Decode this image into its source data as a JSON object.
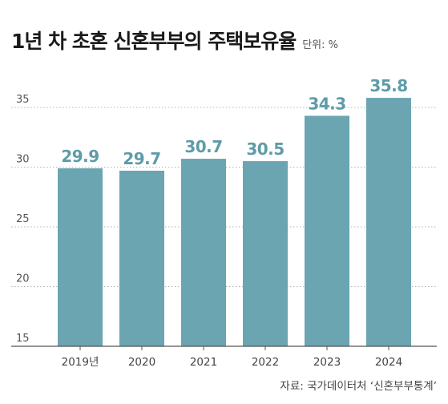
{
  "chart_data": {
    "type": "bar",
    "title": "1년 차 초혼 신혼부부의 주택보유율",
    "unit_label": "단위: %",
    "source": "자료: 국가데이터처 ‘신혼부부통계’",
    "categories": [
      "2019년",
      "2020",
      "2021",
      "2022",
      "2023",
      "2024"
    ],
    "values": [
      29.9,
      29.7,
      30.7,
      30.5,
      34.3,
      35.8
    ],
    "value_labels": [
      "29.9",
      "29.7",
      "30.7",
      "30.5",
      "34.3",
      "35.8"
    ],
    "yticks": [
      15,
      20,
      25,
      30,
      35
    ],
    "ytick_labels": [
      "15",
      "20",
      "25",
      "30",
      "35"
    ],
    "ylim": [
      15,
      37.2
    ],
    "grid": "horizontal dotted",
    "colors": {
      "bar": "#6aa5b1",
      "value_label": "#5e9ca8",
      "grid": "#b5b5b5",
      "axis": "#555555"
    }
  }
}
